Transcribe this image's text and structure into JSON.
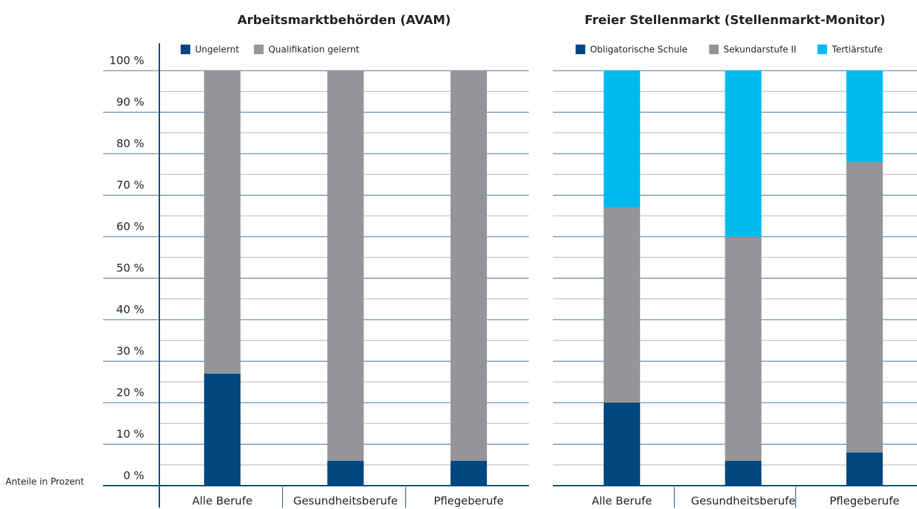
{
  "chart_data": [
    {
      "type": "bar",
      "stacked": true,
      "title": "Arbeitsmarktbehörden (AVAM)",
      "ylabel": "Anteile in Prozent",
      "categories": [
        "Alle Berufe",
        "Gesundheitsberufe",
        "Pflegeberufe"
      ],
      "series": [
        {
          "name": "Ungelernt",
          "color": "#00467f",
          "values": [
            27,
            6,
            6
          ]
        },
        {
          "name": "Qualifikation gelernt",
          "color": "#939598",
          "values": [
            73,
            94,
            94
          ]
        }
      ],
      "ylim": [
        0,
        100
      ],
      "yticks": [
        {
          "value": 0,
          "label": "0 %"
        },
        {
          "value": 10,
          "label": "10 %"
        },
        {
          "value": 20,
          "label": "20 %"
        },
        {
          "value": 30,
          "label": "30 %"
        },
        {
          "value": 40,
          "label": "40 %"
        },
        {
          "value": 50,
          "label": "50 %"
        },
        {
          "value": 60,
          "label": "60 %"
        },
        {
          "value": 70,
          "label": "70 %"
        },
        {
          "value": 80,
          "label": "80 %"
        },
        {
          "value": 90,
          "label": "90 %"
        },
        {
          "value": 100,
          "label": "100 %"
        }
      ],
      "minor_yticks": [
        5,
        15,
        25,
        35,
        45,
        55,
        65,
        75,
        85,
        95
      ],
      "grid": true
    },
    {
      "type": "bar",
      "stacked": true,
      "title": "Freier Stellenmarkt (Stellenmarkt-Monitor)",
      "categories": [
        "Alle Berufe",
        "Gesundheitsberufe",
        "Pflegeberufe"
      ],
      "series": [
        {
          "name": "Obligatorische Schule",
          "color": "#00467f",
          "values": [
            20,
            6,
            8
          ]
        },
        {
          "name": "Sekundarstufe II",
          "color": "#939598",
          "values": [
            47,
            54,
            70
          ]
        },
        {
          "name": "Tertiärstufe",
          "color": "#00b9f0",
          "values": [
            33,
            40,
            22
          ]
        }
      ],
      "ylim": [
        0,
        100
      ],
      "grid": true
    }
  ]
}
